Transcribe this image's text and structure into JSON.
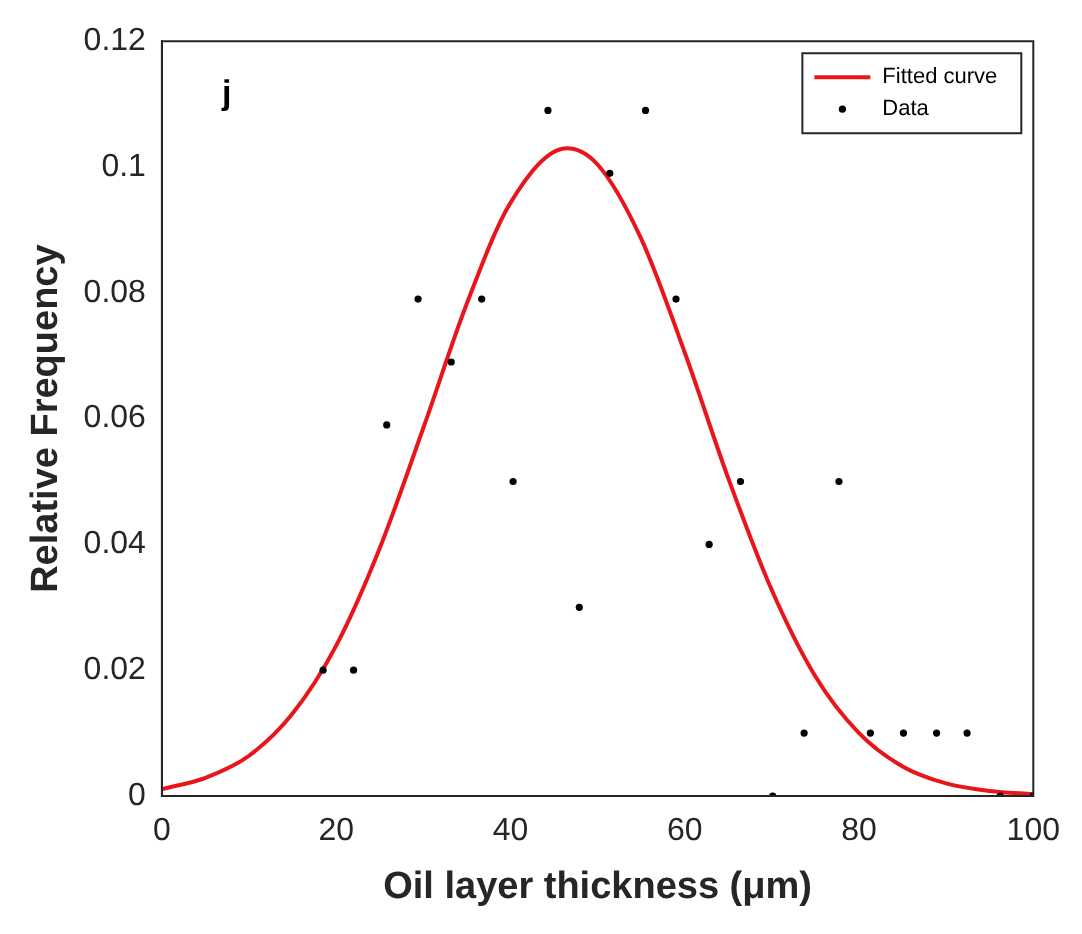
{
  "chart_data": {
    "type": "scatter",
    "xlabel": "Oil layer thickness (μm)",
    "ylabel": "Relative Frequency",
    "annotations": [
      "j"
    ],
    "xlim": [
      0,
      100
    ],
    "xticks": [
      0,
      20,
      40,
      60,
      80,
      100
    ],
    "ylim": [
      0,
      0.12
    ],
    "yticks": [
      0,
      0.02,
      0.04,
      0.06,
      0.08,
      0.1,
      0.12
    ],
    "grid": false,
    "legend": "top right",
    "series": [
      {
        "name": "Fitted curve",
        "type": "line",
        "color": "#e8161b",
        "marker": "none",
        "line_style": "solid",
        "x": [
          0,
          5,
          10,
          15,
          20,
          25,
          30,
          35,
          40,
          46.5,
          50,
          55,
          60,
          65,
          70,
          75,
          80,
          85,
          90,
          95,
          100
        ],
        "values": [
          0.0011,
          0.0029,
          0.0064,
          0.0131,
          0.0239,
          0.0394,
          0.0585,
          0.0783,
          0.0943,
          0.103,
          0.1004,
          0.0886,
          0.0705,
          0.0505,
          0.0327,
          0.019,
          0.01,
          0.0047,
          0.002,
          0.0008,
          0.0003
        ]
      },
      {
        "name": "Data",
        "type": "scatter",
        "color": "#000000",
        "marker": "circle",
        "x": [
          18.5,
          22,
          25.8,
          29.4,
          33.2,
          36.7,
          40.3,
          44.3,
          47.9,
          51.4,
          55.5,
          59,
          62.8,
          66.4,
          70.1,
          73.7,
          77.7,
          81.3,
          85.1,
          88.9,
          92.4,
          96.2,
          100
        ],
        "values": [
          0.02,
          0.02,
          0.059,
          0.079,
          0.069,
          0.079,
          0.05,
          0.109,
          0.03,
          0.099,
          0.109,
          0.079,
          0.04,
          0.05,
          0,
          0.01,
          0.05,
          0.01,
          0.01,
          0.01,
          0.01,
          0,
          0
        ]
      }
    ]
  }
}
